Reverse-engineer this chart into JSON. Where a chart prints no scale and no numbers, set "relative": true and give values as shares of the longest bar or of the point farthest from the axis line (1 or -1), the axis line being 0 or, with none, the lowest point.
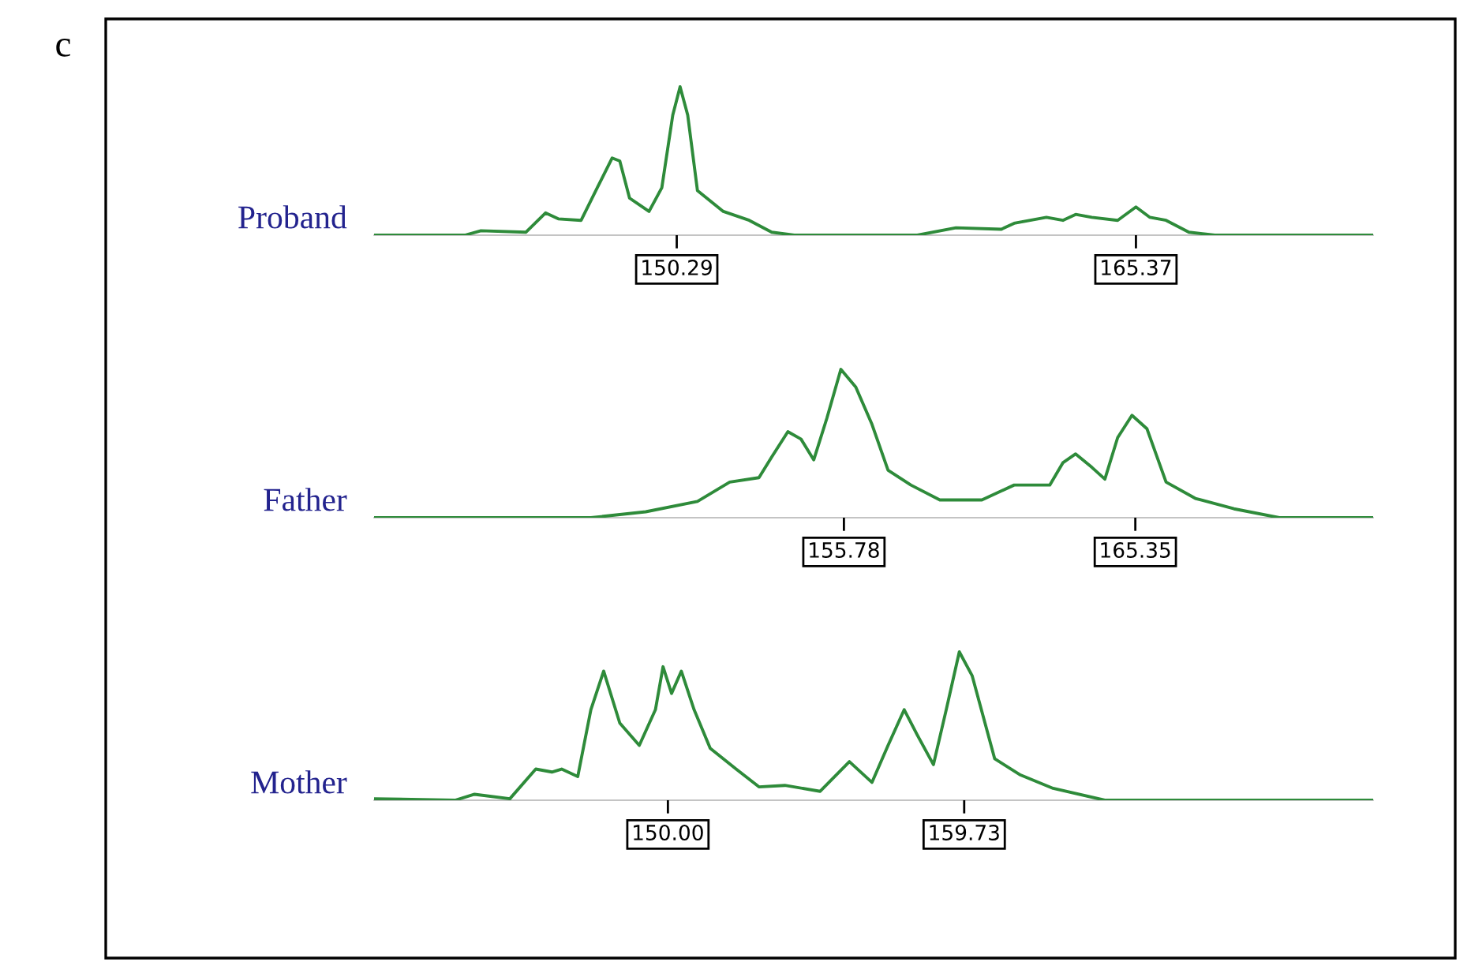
{
  "chart_data": [
    {
      "type": "line",
      "annotations": [
        "c"
      ],
      "ylabel": "Proband",
      "relative": true,
      "tick_labels": "x",
      "xlim": [
        140.35,
        173.16
      ],
      "xticks": [
        150.29,
        165.37
      ],
      "series": [
        {
          "color": "#2e8b3a",
          "x": [
            140.35,
            143.33,
            143.86,
            145.34,
            145.98,
            146.4,
            147.15,
            147.68,
            148.17,
            148.42,
            148.74,
            149.38,
            149.8,
            150.16,
            150.4,
            150.65,
            150.97,
            151.82,
            152.67,
            153.41,
            154.15,
            158.19,
            159.46,
            160.95,
            161.37,
            162.43,
            162.97,
            163.39,
            163.92,
            164.77,
            165.37,
            165.83,
            166.36,
            167.11,
            167.96,
            173.16
          ],
          "values": [
            0,
            0,
            0.03,
            0.02,
            0.15,
            0.11,
            0.1,
            0.32,
            0.52,
            0.5,
            0.25,
            0.16,
            0.32,
            0.81,
            1.0,
            0.81,
            0.3,
            0.16,
            0.1,
            0.02,
            0,
            0,
            0.05,
            0.04,
            0.08,
            0.12,
            0.1,
            0.14,
            0.12,
            0.1,
            0.19,
            0.12,
            0.1,
            0.02,
            0,
            0
          ]
        }
      ]
    },
    {
      "type": "line",
      "ylabel": "Father",
      "relative": true,
      "tick_labels": "x",
      "xlim": [
        140.35,
        173.16
      ],
      "xticks": [
        155.78,
        165.35
      ],
      "series": [
        {
          "color": "#2e8b3a",
          "x": [
            140.35,
            147.47,
            149.27,
            150.97,
            152.03,
            152.99,
            153.41,
            153.94,
            154.37,
            154.79,
            155.22,
            155.68,
            156.17,
            156.7,
            157.23,
            157.98,
            158.93,
            160.31,
            161.37,
            162.54,
            162.97,
            163.39,
            163.92,
            164.35,
            164.77,
            165.24,
            165.73,
            166.36,
            167.32,
            168.59,
            170.08,
            173.16
          ],
          "values": [
            0,
            0,
            0.04,
            0.11,
            0.24,
            0.27,
            0.41,
            0.58,
            0.53,
            0.39,
            0.67,
            1.0,
            0.88,
            0.63,
            0.32,
            0.22,
            0.12,
            0.12,
            0.22,
            0.22,
            0.37,
            0.43,
            0.34,
            0.26,
            0.54,
            0.69,
            0.6,
            0.24,
            0.13,
            0.06,
            0,
            0
          ]
        }
      ]
    },
    {
      "type": "line",
      "ylabel": "Mother",
      "relative": true,
      "tick_labels": "x",
      "xlim": [
        140.35,
        173.16
      ],
      "xticks": [
        {
          "value": 150,
          "label": "150.00"
        },
        159.73
      ],
      "series": [
        {
          "color": "#2e8b3a",
          "x": [
            140.35,
            143.01,
            143.65,
            144.81,
            145.66,
            146.19,
            146.51,
            147.04,
            147.47,
            147.89,
            148.42,
            149.06,
            149.59,
            149.84,
            150.12,
            150.44,
            150.86,
            151.39,
            152.24,
            152.99,
            153.84,
            155.0,
            155.96,
            156.7,
            157.23,
            157.76,
            158.19,
            158.72,
            159.14,
            159.57,
            159.99,
            160.73,
            161.58,
            162.65,
            164.35,
            173.16
          ],
          "values": [
            0.01,
            0,
            0.04,
            0.01,
            0.21,
            0.19,
            0.21,
            0.16,
            0.61,
            0.87,
            0.52,
            0.37,
            0.61,
            0.9,
            0.72,
            0.87,
            0.61,
            0.35,
            0.21,
            0.09,
            0.1,
            0.06,
            0.26,
            0.12,
            0.37,
            0.61,
            0.44,
            0.24,
            0.61,
            1.0,
            0.84,
            0.28,
            0.17,
            0.08,
            0,
            0
          ]
        }
      ]
    }
  ]
}
